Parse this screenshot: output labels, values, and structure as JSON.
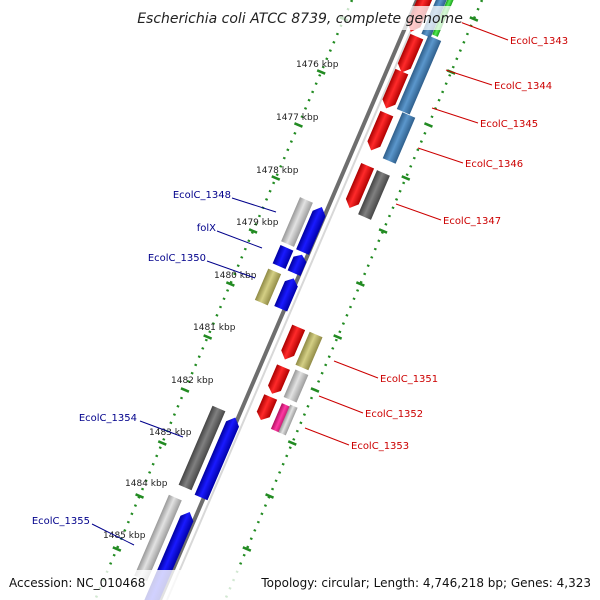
{
  "title": "Escherichia coli ATCC 8739, complete genome",
  "footer": {
    "accession": "Accession: NC_010468",
    "summary": "Topology: circular; Length: 4,746,218 bp; Genes: 4,323"
  },
  "colors": {
    "red": "#ff0000",
    "blue": "#0000ff",
    "steel": "#4682b4",
    "dark_gray": "#696969",
    "light_gray": "#c0c0c0",
    "khaki": "#bdb76b",
    "pink": "#ff1493",
    "green": "#33dd33",
    "label_blue": "#00008b",
    "label_red": "#cc0000",
    "tick_green": "#228b22"
  },
  "kbp_ticks": [
    "1476 kbp",
    "1477 kbp",
    "1478 kbp",
    "1479 kbp",
    "1480 kbp",
    "1481 kbp",
    "1482 kbp",
    "1483 kbp",
    "1484 kbp",
    "1485 kbp"
  ],
  "labels_left": [
    {
      "text": "EcolC_1348"
    },
    {
      "text": "folX"
    },
    {
      "text": "EcolC_1350"
    },
    {
      "text": "EcolC_1354"
    },
    {
      "text": "EcolC_1355"
    }
  ],
  "labels_right": [
    {
      "text": "EcolC_1343"
    },
    {
      "text": "EcolC_1344"
    },
    {
      "text": "EcolC_1345"
    },
    {
      "text": "EcolC_1346"
    },
    {
      "text": "EcolC_1347"
    },
    {
      "text": "EcolC_1351"
    },
    {
      "text": "EcolC_1352"
    },
    {
      "text": "EcolC_1353"
    }
  ]
}
